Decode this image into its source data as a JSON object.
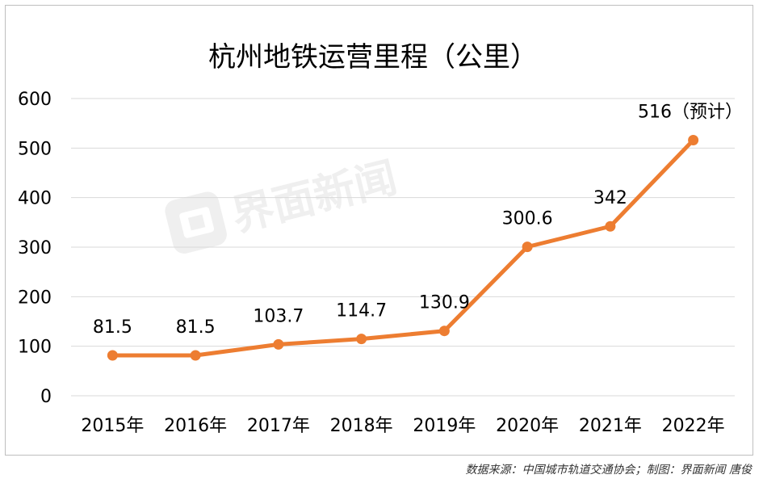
{
  "chart_data": {
    "type": "line",
    "title": "杭州地铁运营里程（公里）",
    "xlabel": "",
    "ylabel": "",
    "categories": [
      "2015年",
      "2016年",
      "2017年",
      "2018年",
      "2019年",
      "2020年",
      "2021年",
      "2022年"
    ],
    "series": [
      {
        "values": [
          81.5,
          81.5,
          103.7,
          114.7,
          130.9,
          300.6,
          342,
          516
        ],
        "labels": [
          "81.5",
          "81.5",
          "103.7",
          "114.7",
          "130.9",
          "300.6",
          "342",
          "516（预计）"
        ]
      }
    ],
    "ylim": [
      0,
      600
    ],
    "yticks": [
      "0",
      "100",
      "200",
      "300",
      "400",
      "500",
      "600"
    ],
    "grid": true,
    "legend": "none",
    "line_color": "#ed7d31",
    "grid_color": "#d9d9d9"
  },
  "watermark": "界面新闻",
  "source_note": "数据来源：中国城市轨道交通协会；制图：界面新闻 唐俊"
}
